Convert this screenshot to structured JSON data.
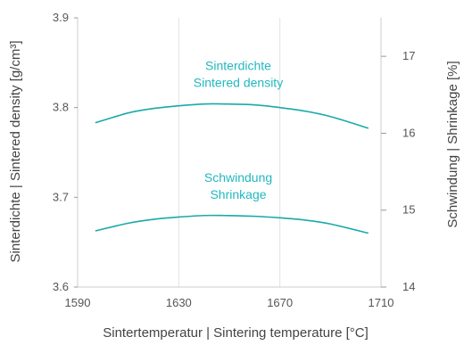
{
  "chart_data": {
    "type": "line",
    "xlabel": "Sintertemperatur  |  Sintering temperature [°C]",
    "ylabel_left": "Sinterdichte  |  Sintered density [g/cm³]",
    "ylabel_right": "Schwindung  |  Shrinkage [%]",
    "xlim": [
      1590,
      1710
    ],
    "ylim_left": [
      3.6,
      3.9
    ],
    "ylim_right": [
      14,
      17.5
    ],
    "x_ticks": [
      1590,
      1630,
      1670,
      1710
    ],
    "y_left_ticks": [
      3.6,
      3.7,
      3.8,
      3.9
    ],
    "y_right_ticks": [
      14,
      15,
      16,
      17
    ],
    "grid": "vertical",
    "series": [
      {
        "label_lines": [
          "Sinterdichte",
          "Sintered density"
        ],
        "axis": "left",
        "x": [
          1597,
          1610,
          1620,
          1630,
          1640,
          1648,
          1660,
          1670,
          1680,
          1690,
          1705
        ],
        "y": [
          3.783,
          3.794,
          3.799,
          3.802,
          3.804,
          3.804,
          3.803,
          3.8,
          3.796,
          3.79,
          3.777
        ]
      },
      {
        "label_lines": [
          "Schwindung",
          "Shrinkage"
        ],
        "axis": "right",
        "x": [
          1597,
          1610,
          1620,
          1630,
          1640,
          1648,
          1660,
          1670,
          1680,
          1690,
          1705
        ],
        "y": [
          14.73,
          14.83,
          14.88,
          14.91,
          14.93,
          14.93,
          14.92,
          14.9,
          14.87,
          14.82,
          14.7
        ]
      }
    ],
    "colors": {
      "series": "#1aa9a9",
      "annotation": "#22b8bf"
    }
  }
}
